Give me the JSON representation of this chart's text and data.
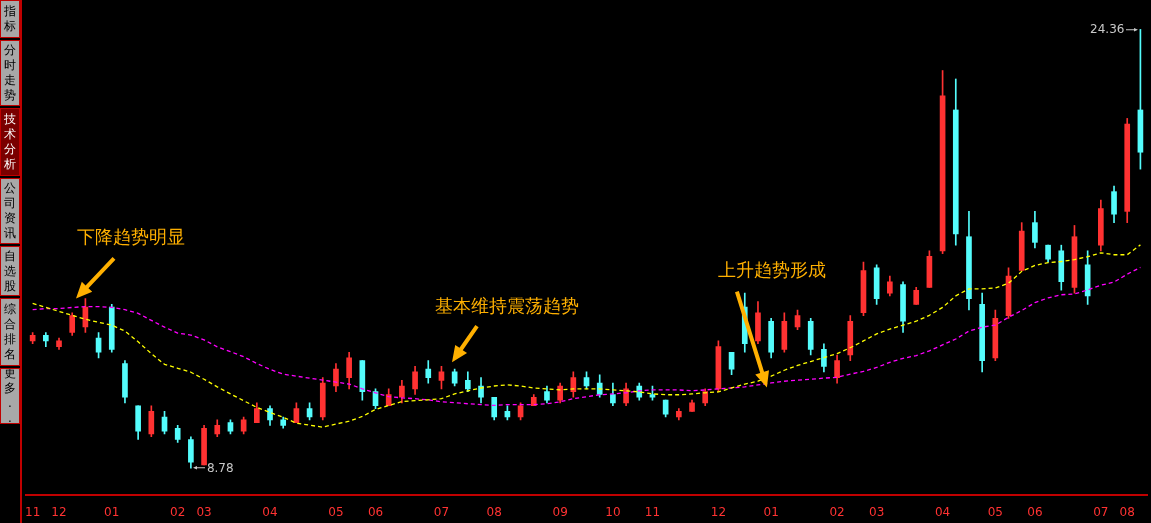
{
  "chart_data": {
    "type": "candlestick",
    "marker": "none",
    "categories": [
      "11",
      null,
      "12",
      null,
      null,
      null,
      "01",
      null,
      null,
      null,
      null,
      "02",
      null,
      "03",
      null,
      null,
      null,
      null,
      "04",
      null,
      null,
      null,
      null,
      "05",
      null,
      null,
      "06",
      null,
      null,
      null,
      null,
      "07",
      null,
      null,
      null,
      "08",
      null,
      null,
      null,
      null,
      "09",
      null,
      null,
      null,
      "10",
      null,
      null,
      "11",
      null,
      null,
      null,
      null,
      "12",
      null,
      null,
      null,
      "01",
      null,
      null,
      null,
      null,
      "02",
      null,
      null,
      "03",
      null,
      null,
      null,
      null,
      "04",
      null,
      null,
      null,
      "05",
      null,
      null,
      "06",
      null,
      null,
      null,
      null,
      "07",
      null,
      "08",
      null
    ],
    "ohlc": [
      [
        13.3,
        13.6,
        13.2,
        13.5
      ],
      [
        13.5,
        13.6,
        13.1,
        13.3
      ],
      [
        13.1,
        13.4,
        13.0,
        13.3
      ],
      [
        13.6,
        14.3,
        13.5,
        14.2
      ],
      [
        13.8,
        14.8,
        13.6,
        14.5
      ],
      [
        13.4,
        13.6,
        12.7,
        12.9
      ],
      [
        14.5,
        14.6,
        12.9,
        13.0
      ],
      [
        12.5,
        12.6,
        11.1,
        11.3
      ],
      [
        11.0,
        11.0,
        9.8,
        10.1
      ],
      [
        10.0,
        11.0,
        9.9,
        10.8
      ],
      [
        10.6,
        10.8,
        10.0,
        10.1
      ],
      [
        10.2,
        10.3,
        9.7,
        9.8
      ],
      [
        9.8,
        9.9,
        8.78,
        9.0
      ],
      [
        8.9,
        10.3,
        8.9,
        10.2
      ],
      [
        10.0,
        10.5,
        9.9,
        10.3
      ],
      [
        10.4,
        10.5,
        10.0,
        10.1
      ],
      [
        10.1,
        10.6,
        10.0,
        10.5
      ],
      [
        10.4,
        11.1,
        10.4,
        10.9
      ],
      [
        10.9,
        11.0,
        10.3,
        10.5
      ],
      [
        10.5,
        10.6,
        10.2,
        10.3
      ],
      [
        10.4,
        11.1,
        10.4,
        10.9
      ],
      [
        10.9,
        11.1,
        10.5,
        10.6
      ],
      [
        10.6,
        12.0,
        10.5,
        11.8
      ],
      [
        11.7,
        12.5,
        11.5,
        12.3
      ],
      [
        12.0,
        12.9,
        11.6,
        12.7
      ],
      [
        12.6,
        12.6,
        11.2,
        11.5
      ],
      [
        11.5,
        11.6,
        10.9,
        11.0
      ],
      [
        11.0,
        11.6,
        11.0,
        11.4
      ],
      [
        11.3,
        11.9,
        11.1,
        11.7
      ],
      [
        11.6,
        12.4,
        11.4,
        12.2
      ],
      [
        12.3,
        12.6,
        11.8,
        12.0
      ],
      [
        11.9,
        12.4,
        11.6,
        12.2
      ],
      [
        12.2,
        12.3,
        11.7,
        11.8
      ],
      [
        11.9,
        12.2,
        11.5,
        11.6
      ],
      [
        11.7,
        12.0,
        11.1,
        11.3
      ],
      [
        11.3,
        11.3,
        10.5,
        10.6
      ],
      [
        10.8,
        11.0,
        10.5,
        10.6
      ],
      [
        10.6,
        11.1,
        10.5,
        11.0
      ],
      [
        11.0,
        11.4,
        11.0,
        11.3
      ],
      [
        11.5,
        11.7,
        11.1,
        11.2
      ],
      [
        11.2,
        11.8,
        11.1,
        11.7
      ],
      [
        11.5,
        12.2,
        11.3,
        12.0
      ],
      [
        12.0,
        12.2,
        11.6,
        11.7
      ],
      [
        11.8,
        12.1,
        11.3,
        11.4
      ],
      [
        11.4,
        11.8,
        11.0,
        11.1
      ],
      [
        11.1,
        11.8,
        11.0,
        11.6
      ],
      [
        11.7,
        11.8,
        11.2,
        11.3
      ],
      [
        11.4,
        11.7,
        11.2,
        11.3
      ],
      [
        11.2,
        11.2,
        10.6,
        10.7
      ],
      [
        10.6,
        10.9,
        10.5,
        10.8
      ],
      [
        10.8,
        11.2,
        10.8,
        11.1
      ],
      [
        11.1,
        11.6,
        11.0,
        11.5
      ],
      [
        11.6,
        13.3,
        11.5,
        13.1
      ],
      [
        12.9,
        12.9,
        12.1,
        12.3
      ],
      [
        14.5,
        15.0,
        12.9,
        13.2
      ],
      [
        13.3,
        14.7,
        13.2,
        14.3
      ],
      [
        14.0,
        14.1,
        12.7,
        12.9
      ],
      [
        13.0,
        14.3,
        12.9,
        14.0
      ],
      [
        13.8,
        14.4,
        13.7,
        14.2
      ],
      [
        14.0,
        14.1,
        12.8,
        13.0
      ],
      [
        13.0,
        13.2,
        12.2,
        12.4
      ],
      [
        12.0,
        12.8,
        11.8,
        12.6
      ],
      [
        12.8,
        14.2,
        12.6,
        14.0
      ],
      [
        14.3,
        16.1,
        14.2,
        15.8
      ],
      [
        15.9,
        16.0,
        14.6,
        14.8
      ],
      [
        15.0,
        15.6,
        14.9,
        15.4
      ],
      [
        15.3,
        15.4,
        13.6,
        14.0
      ],
      [
        14.6,
        15.2,
        14.6,
        15.1
      ],
      [
        15.2,
        16.5,
        15.2,
        16.3
      ],
      [
        16.5,
        22.9,
        16.4,
        22.0
      ],
      [
        21.5,
        22.6,
        16.7,
        17.1
      ],
      [
        17.0,
        17.9,
        14.4,
        14.8
      ],
      [
        14.6,
        15.0,
        12.2,
        12.6
      ],
      [
        12.7,
        14.4,
        12.6,
        14.1
      ],
      [
        14.2,
        15.9,
        14.1,
        15.6
      ],
      [
        15.8,
        17.5,
        15.8,
        17.2
      ],
      [
        17.5,
        17.9,
        16.6,
        16.8
      ],
      [
        16.7,
        16.7,
        16.1,
        16.2
      ],
      [
        16.5,
        16.7,
        15.1,
        15.4
      ],
      [
        15.2,
        17.4,
        15.0,
        17.0
      ],
      [
        16.0,
        16.5,
        14.6,
        14.9
      ],
      [
        16.7,
        18.3,
        16.5,
        18.0
      ],
      [
        18.6,
        18.8,
        17.5,
        17.8
      ],
      [
        17.9,
        21.2,
        17.5,
        21.0
      ],
      [
        21.5,
        24.36,
        19.4,
        20.0
      ]
    ],
    "colors": [
      "#ff3232",
      "#54fcfc",
      "#ff3232",
      "#ff3232",
      "#ff3232",
      "#54fcfc",
      "#54fcfc",
      "#54fcfc",
      "#54fcfc",
      "#ff3232",
      "#54fcfc",
      "#54fcfc",
      "#54fcfc",
      "#ff3232",
      "#ff3232",
      "#54fcfc",
      "#ff3232",
      "#ff3232",
      "#54fcfc",
      "#54fcfc",
      "#ff3232",
      "#54fcfc",
      "#ff3232",
      "#ff3232",
      "#ff3232",
      "#54fcfc",
      "#54fcfc",
      "#ff3232",
      "#ff3232",
      "#ff3232",
      "#54fcfc",
      "#ff3232",
      "#54fcfc",
      "#54fcfc",
      "#54fcfc",
      "#54fcfc",
      "#54fcfc",
      "#ff3232",
      "#ff3232",
      "#54fcfc",
      "#ff3232",
      "#ff3232",
      "#54fcfc",
      "#54fcfc",
      "#54fcfc",
      "#ff3232",
      "#54fcfc",
      "#54fcfc",
      "#54fcfc",
      "#ff3232",
      "#ff3232",
      "#ff3232",
      "#ff3232",
      "#54fcfc",
      "#54fcfc",
      "#ff3232",
      "#54fcfc",
      "#ff3232",
      "#ff3232",
      "#54fcfc",
      "#54fcfc",
      "#ff3232",
      "#ff3232",
      "#ff3232",
      "#54fcfc",
      "#ff3232",
      "#54fcfc",
      "#ff3232",
      "#ff3232",
      "#ff3232",
      "#54fcfc",
      "#54fcfc",
      "#54fcfc",
      "#ff3232",
      "#ff3232",
      "#ff3232",
      "#54fcfc",
      "#54fcfc",
      "#54fcfc",
      "#ff3232",
      "#54fcfc",
      "#ff3232",
      "#54fcfc",
      "#ff3232",
      "#54fcfc"
    ],
    "series": [
      {
        "type": "line",
        "color": "#ffff00",
        "line_style": "dashed",
        "values": [
          14.63,
          14.49,
          14.35,
          14.21,
          14.07,
          13.96,
          13.86,
          13.65,
          13.27,
          12.85,
          12.47,
          12.33,
          12.19,
          11.94,
          11.67,
          11.42,
          11.18,
          10.94,
          10.76,
          10.59,
          10.38,
          10.31,
          10.24,
          10.35,
          10.45,
          10.62,
          10.87,
          11.01,
          11.15,
          11.18,
          11.21,
          11.25,
          11.42,
          11.53,
          11.63,
          11.7,
          11.74,
          11.7,
          11.63,
          11.6,
          11.56,
          11.6,
          11.6,
          11.6,
          11.56,
          11.53,
          11.49,
          11.42,
          11.39,
          11.39,
          11.42,
          11.46,
          11.49,
          11.63,
          11.77,
          11.87,
          12.05,
          12.26,
          12.43,
          12.57,
          12.71,
          12.85,
          13.06,
          13.3,
          13.55,
          13.72,
          13.86,
          14.0,
          14.21,
          14.49,
          14.9,
          15.15,
          15.15,
          15.18,
          15.35,
          15.77,
          15.98,
          16.08,
          16.12,
          16.19,
          16.29,
          16.43,
          16.36,
          16.36,
          16.71
        ]
      },
      {
        "type": "line",
        "color": "#ff00ff",
        "line_style": "dashed",
        "values": [
          14.41,
          14.45,
          14.45,
          14.49,
          14.52,
          14.52,
          14.49,
          14.41,
          14.28,
          14.03,
          13.79,
          13.58,
          13.51,
          13.34,
          13.09,
          12.92,
          12.74,
          12.5,
          12.29,
          12.12,
          12.05,
          11.98,
          11.91,
          11.84,
          11.77,
          11.6,
          11.46,
          11.32,
          11.28,
          11.25,
          11.21,
          11.14,
          11.11,
          11.07,
          11.04,
          11.01,
          11.04,
          11.04,
          11.04,
          11.07,
          11.14,
          11.25,
          11.32,
          11.39,
          11.42,
          11.46,
          11.53,
          11.56,
          11.56,
          11.56,
          11.53,
          11.56,
          11.6,
          11.63,
          11.67,
          11.74,
          11.81,
          11.87,
          11.91,
          11.94,
          11.98,
          12.01,
          12.12,
          12.22,
          12.36,
          12.54,
          12.68,
          12.78,
          12.95,
          13.16,
          13.37,
          13.65,
          13.79,
          13.86,
          14.14,
          14.38,
          14.66,
          14.83,
          14.94,
          14.97,
          15.11,
          15.28,
          15.39,
          15.67,
          15.91
        ]
      }
    ],
    "annotations": [
      "下降趋势明显",
      "基本维持震荡趋势",
      "上升趋势形成",
      "指标",
      "分时走势",
      "技术分析",
      "公司资讯",
      "自选股",
      "综合排名",
      "更多..",
      "8.78",
      "24.36"
    ]
  }
}
